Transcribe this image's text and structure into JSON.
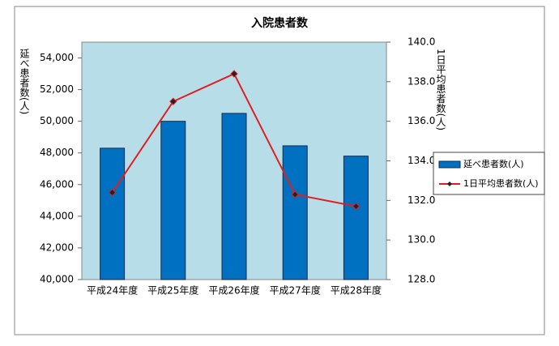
{
  "chart_data": {
    "type": "bar",
    "title": "入院患者数",
    "ylabel": "延べ患者数(人)",
    "y2label": "1日平均患者数(人)",
    "categories": [
      "平成24年度",
      "平成25年度",
      "平成26年度",
      "平成27年度",
      "平成28年度"
    ],
    "series": [
      {
        "name": "延べ患者数(人)",
        "type": "bar",
        "color": "#0070c0",
        "values": [
          48300,
          50000,
          50500,
          48450,
          47800
        ]
      },
      {
        "name": "1日平均患者数(人)",
        "type": "line",
        "axis": "y2",
        "color": "#e02020",
        "values": [
          132.4,
          137.0,
          138.4,
          132.3,
          131.7
        ]
      }
    ],
    "ylim": [
      40000,
      55000
    ],
    "yticks": [
      {
        "value": 40000,
        "label": "40,000"
      },
      {
        "value": 42000,
        "label": "42,000"
      },
      {
        "value": 44000,
        "label": "44,000"
      },
      {
        "value": 46000,
        "label": "46,000"
      },
      {
        "value": 48000,
        "label": "48,000"
      },
      {
        "value": 50000,
        "label": "50,000"
      },
      {
        "value": 52000,
        "label": "52,000"
      },
      {
        "value": 54000,
        "label": "54,000"
      }
    ],
    "y2lim": [
      128,
      140
    ],
    "y2ticks": [
      {
        "value": 128,
        "label": "128.0"
      },
      {
        "value": 130,
        "label": "130.0"
      },
      {
        "value": 132,
        "label": "132.0"
      },
      {
        "value": 134,
        "label": "134.0"
      },
      {
        "value": 136,
        "label": "136.0"
      },
      {
        "value": 138,
        "label": "138.0"
      },
      {
        "value": 140,
        "label": "140.0"
      }
    ],
    "legend": "right",
    "plot_background": "#b7dde8"
  }
}
